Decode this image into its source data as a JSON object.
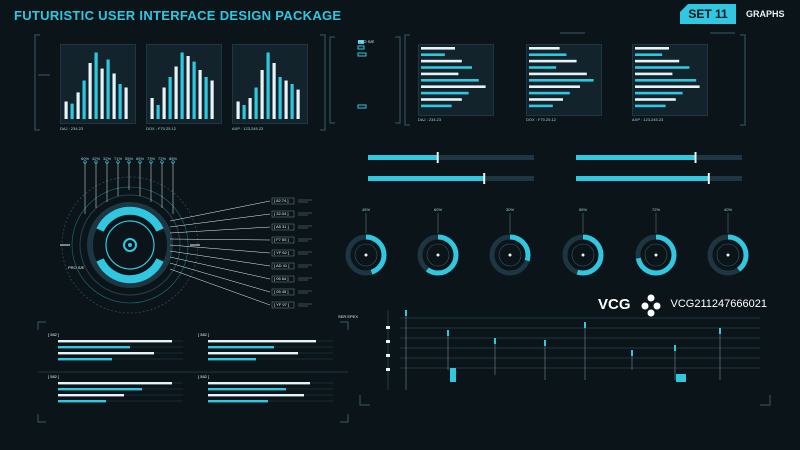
{
  "header": {
    "title": "FUTURISTIC USER INTERFACE DESIGN PACKAGE",
    "set_label": "SET 11",
    "section_label": "GRAPHS"
  },
  "colors": {
    "accent": "#2fc8e0",
    "background": "#0b1419",
    "panel": "#12232b",
    "white": "#e6f3f7"
  },
  "vertical_bar_charts": [
    {
      "values": [
        0.25,
        0.22,
        0.38,
        0.55,
        0.8,
        0.95,
        0.72,
        0.85,
        0.65,
        0.5,
        0.45
      ],
      "footer": "DAJ : 234.23"
    },
    {
      "values": [
        0.3,
        0.2,
        0.45,
        0.6,
        0.75,
        0.95,
        0.9,
        0.82,
        0.7,
        0.6,
        0.55
      ],
      "footer": "DOX : F70.25.12"
    },
    {
      "values": [
        0.25,
        0.2,
        0.3,
        0.45,
        0.7,
        0.95,
        0.8,
        0.6,
        0.55,
        0.5,
        0.42
      ],
      "footer": "AXP : 123.245.23"
    }
  ],
  "horizontal_bar_charts": [
    {
      "values": [
        0.5,
        0.35,
        0.6,
        0.75,
        0.55,
        0.85,
        0.95,
        0.7,
        0.6,
        0.45
      ],
      "footer": "DAJ : 234.23"
    },
    {
      "values": [
        0.45,
        0.55,
        0.7,
        0.4,
        0.85,
        0.95,
        0.75,
        0.6,
        0.5,
        0.35
      ],
      "footer": "DOX : F70.25.12"
    },
    {
      "values": [
        0.5,
        0.4,
        0.65,
        0.8,
        0.55,
        0.9,
        0.95,
        0.7,
        0.6,
        0.45
      ],
      "footer": "AXP : 123.245.23"
    }
  ],
  "radial": {
    "label": "PRO S/E",
    "top_percents": [
      "60%",
      "42%",
      "32%",
      "71%",
      "55%",
      "65%",
      "73%",
      "72%",
      "85%"
    ],
    "codes": [
      "[ 82.74 ]",
      "[ 32.04 ]",
      "[ A5 31 ]",
      "[ F7 65 ]",
      "[ YF 62 ]",
      "[ AD 41 ]",
      "[ 05 64 ]",
      "[ 05 45 ]",
      "[ YF 97 ]"
    ]
  },
  "progress_bars": [
    {
      "fill": 0.42
    },
    {
      "fill": 0.72
    },
    {
      "fill": 0.7
    },
    {
      "fill": 0.8
    }
  ],
  "gauges": [
    {
      "fill": 0.45,
      "label": "45%"
    },
    {
      "fill": 0.6,
      "label": "60%"
    },
    {
      "fill": 0.3,
      "label": "30%"
    },
    {
      "fill": 0.55,
      "label": "55%"
    },
    {
      "fill": 0.72,
      "label": "72%"
    },
    {
      "fill": 0.4,
      "label": "40%"
    }
  ],
  "lower_left_panels": [
    {
      "code": "[ 582 ]",
      "bars": [
        0.95,
        0.6,
        0.8,
        0.45
      ]
    },
    {
      "code": "[ 582 ]",
      "bars": [
        0.9,
        0.55,
        0.75,
        0.4
      ]
    },
    {
      "code": "[ 582 ]",
      "bars": [
        0.95,
        0.7,
        0.55,
        0.4
      ]
    },
    {
      "code": "[ 582 ]",
      "bars": [
        0.85,
        0.65,
        0.8,
        0.5
      ]
    }
  ],
  "timeline": {
    "label": "SER EPEX"
  },
  "watermark": {
    "brand": "VCG",
    "id": "VCG211247666021"
  }
}
